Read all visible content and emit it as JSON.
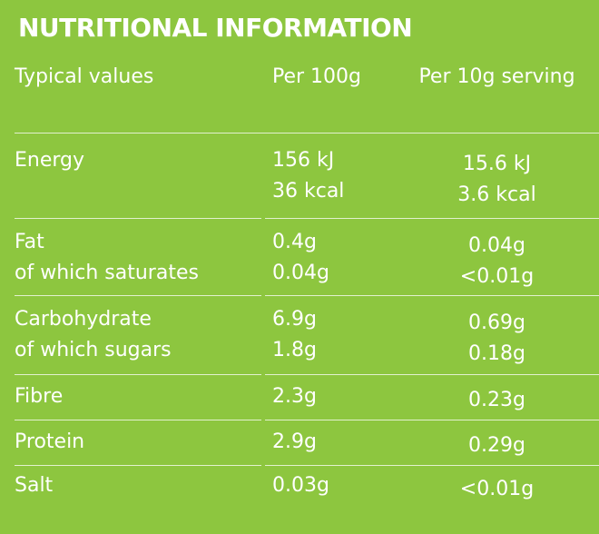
{
  "title": "NUTRITIONAL INFORMATION",
  "table": {
    "header": [
      "Typical values",
      "Per 100g",
      "Per 10g serving"
    ],
    "rows": [
      [
        [
          "Energy"
        ],
        [
          "156 kJ",
          "36 kcal"
        ],
        [
          "15.6 kJ",
          "3.6 kcal"
        ]
      ],
      [
        [
          "Fat",
          "of which saturates"
        ],
        [
          "0.4g",
          "0.04g"
        ],
        [
          "0.04g",
          "<0.01g"
        ]
      ],
      [
        [
          "Carbohydrate",
          "of which sugars"
        ],
        [
          "6.9g",
          "1.8g"
        ],
        [
          "0.69g",
          "0.18g"
        ]
      ],
      [
        [
          "Fibre"
        ],
        [
          "2.3g"
        ],
        [
          "0.23g"
        ]
      ],
      [
        [
          "Protein"
        ],
        [
          "2.9g"
        ],
        [
          "0.29g"
        ]
      ],
      [
        [
          "Salt"
        ],
        [
          "0.03g"
        ],
        [
          "<0.01g"
        ]
      ]
    ]
  }
}
